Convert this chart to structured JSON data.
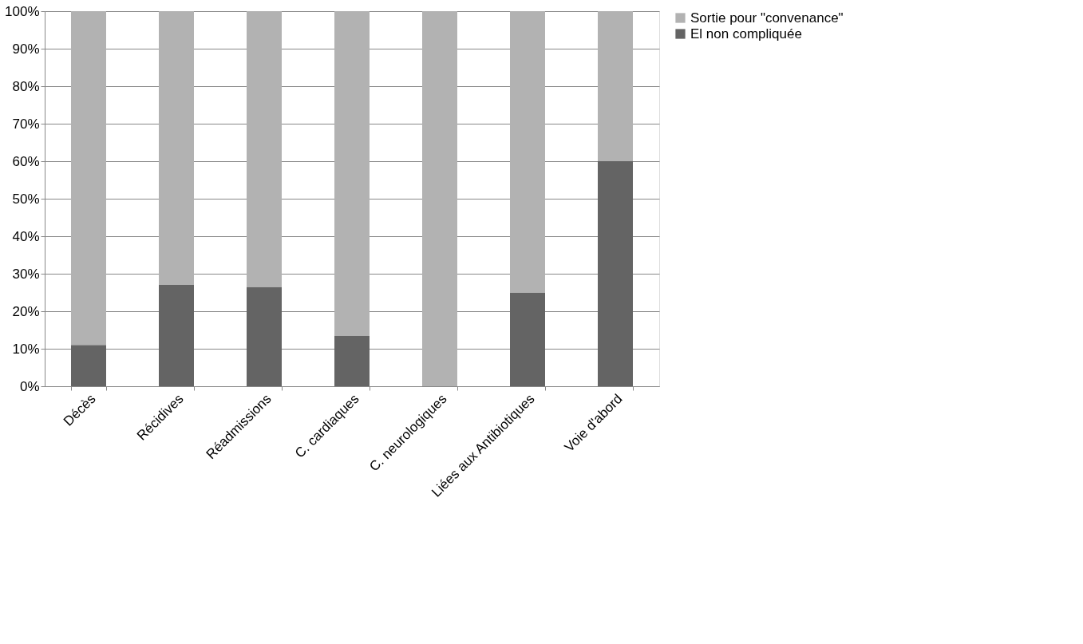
{
  "chart_data": {
    "type": "bar",
    "stacked": true,
    "categories": [
      "Décès",
      "Récidives",
      "Réadmissions",
      "C. cardiaques",
      "C. neurologiques",
      "Liées aux Antibiotiques",
      "Voie d'abord"
    ],
    "series": [
      {
        "name": "El non compliquée",
        "color": "#646464",
        "values": [
          11,
          27,
          26.5,
          13.5,
          0,
          25,
          60
        ]
      },
      {
        "name": "Sortie pour \"convenance\"",
        "color": "#b2b2b2",
        "values": [
          89,
          73,
          73.5,
          86.5,
          100,
          75,
          40
        ]
      }
    ],
    "ylim": [
      0,
      100
    ],
    "yticks": [
      {
        "value": 0,
        "label": "0%"
      },
      {
        "value": 10,
        "label": "10%"
      },
      {
        "value": 20,
        "label": "20%"
      },
      {
        "value": 30,
        "label": "30%"
      },
      {
        "value": 40,
        "label": "40%"
      },
      {
        "value": 50,
        "label": "50%"
      },
      {
        "value": 60,
        "label": "60%"
      },
      {
        "value": 70,
        "label": "70%"
      },
      {
        "value": 80,
        "label": "80%"
      },
      {
        "value": 90,
        "label": "90%"
      },
      {
        "value": 100,
        "label": "100%"
      }
    ],
    "grid": "y",
    "legend": "right"
  }
}
